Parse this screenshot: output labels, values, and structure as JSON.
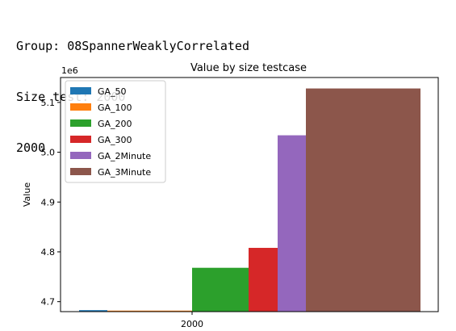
{
  "console": {
    "line1": "Group: 08SpannerWeaklyCorrelated",
    "line2": "Size test: 2000",
    "line3": "2000"
  },
  "chart_data": {
    "type": "bar",
    "title": "Value by size testcase",
    "xlabel": "",
    "ylabel": "Value",
    "offset_label": "1e6",
    "categories": [
      "2000"
    ],
    "ylim": [
      4.68,
      5.15
    ],
    "yticks": [
      4.7,
      4.8,
      4.9,
      5.0,
      5.1
    ],
    "ytick_labels": [
      "4.7",
      "4.8",
      "4.9",
      "5.0",
      "5.1"
    ],
    "legend_position": "upper left",
    "series": [
      {
        "name": "GA_50",
        "color": "#1f77b4",
        "values": [
          4.683
        ]
      },
      {
        "name": "GA_100",
        "color": "#ff7f0e",
        "values": [
          4.682
        ]
      },
      {
        "name": "GA_200",
        "color": "#2ca02c",
        "values": [
          4.768
        ]
      },
      {
        "name": "GA_300",
        "color": "#d62728",
        "values": [
          4.808
        ]
      },
      {
        "name": "GA_2Minute",
        "color": "#9467bd",
        "values": [
          5.034
        ]
      },
      {
        "name": "GA_3Minute",
        "color": "#8c564b",
        "values": [
          5.128
        ]
      }
    ]
  }
}
